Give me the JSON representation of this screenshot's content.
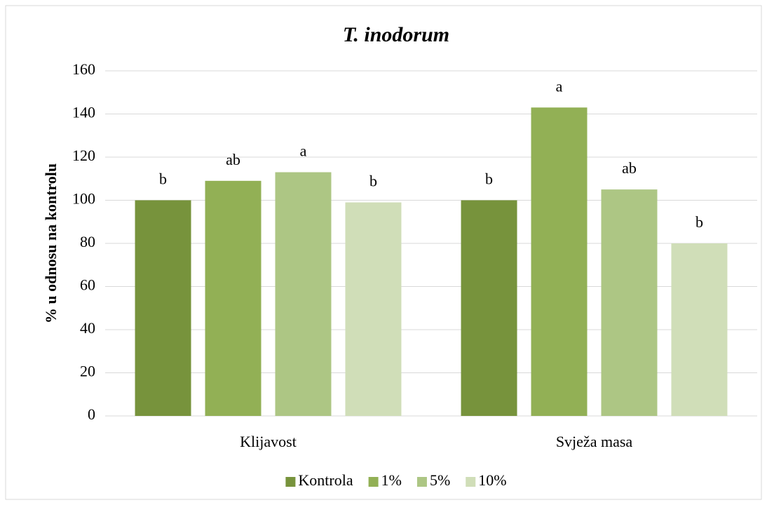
{
  "chart_data": {
    "type": "bar",
    "title": "T. inodorum",
    "y_label": "% u odnosu na kontrolu",
    "categories": [
      "Klijavost",
      "Svježa masa"
    ],
    "series": [
      {
        "name": "Kontrola",
        "color": "#77933c",
        "values": [
          100,
          100
        ],
        "labels": [
          "b",
          "b"
        ]
      },
      {
        "name": "1%",
        "color": "#92b055",
        "values": [
          109,
          143
        ],
        "labels": [
          "ab",
          "a"
        ]
      },
      {
        "name": "5%",
        "color": "#adc684",
        "values": [
          113,
          105
        ],
        "labels": [
          "a",
          "ab"
        ]
      },
      {
        "name": "10%",
        "color": "#d0deb8",
        "values": [
          99,
          80
        ],
        "labels": [
          "b",
          "b"
        ]
      }
    ],
    "ylim": [
      0,
      160
    ],
    "yticks": [
      0,
      20,
      40,
      60,
      80,
      100,
      120,
      140,
      160
    ],
    "grid": true,
    "legend": "bottom"
  }
}
